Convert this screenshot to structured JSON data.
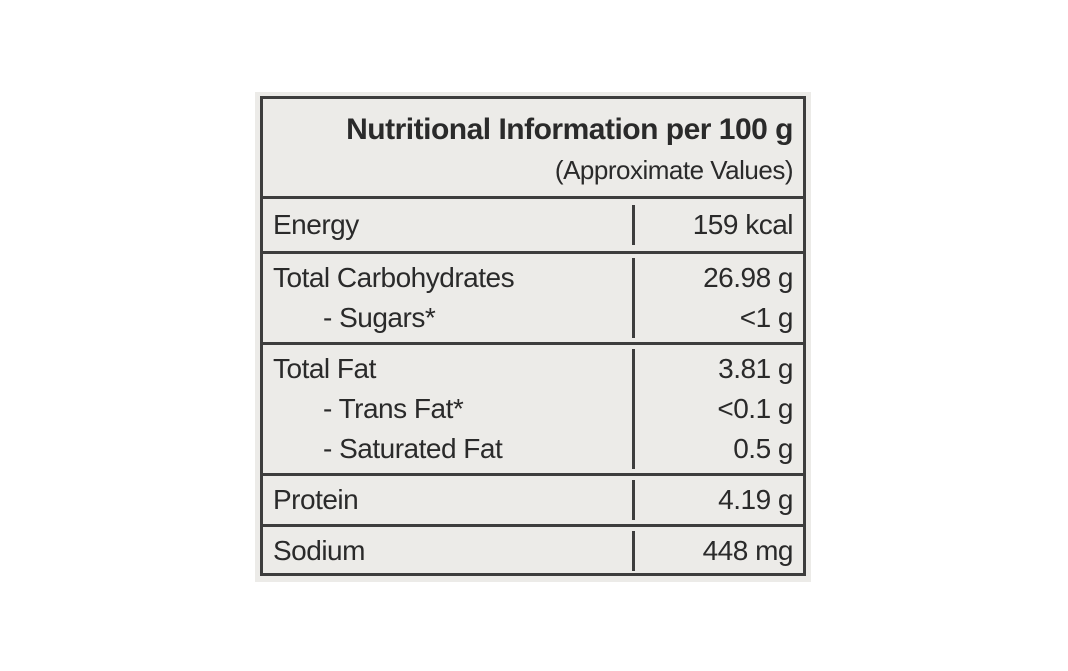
{
  "header": {
    "title": "Nutritional Information per 100 g",
    "subtitle": "(Approximate Values)"
  },
  "table": {
    "rows": [
      [
        [
          "Energy"
        ],
        [
          "159 kcal"
        ]
      ],
      [
        [
          "Total Carbohydrates",
          "- Sugars*"
        ],
        [
          "26.98 g",
          "<1 g"
        ]
      ],
      [
        [
          "Total Fat",
          "- Trans Fat*",
          "- Saturated Fat"
        ],
        [
          "3.81 g",
          "<0.1 g",
          "0.5 g"
        ]
      ],
      [
        [
          "Protein"
        ],
        [
          "4.19 g"
        ]
      ],
      [
        [
          "Sodium"
        ],
        [
          "448 mg"
        ]
      ]
    ]
  }
}
